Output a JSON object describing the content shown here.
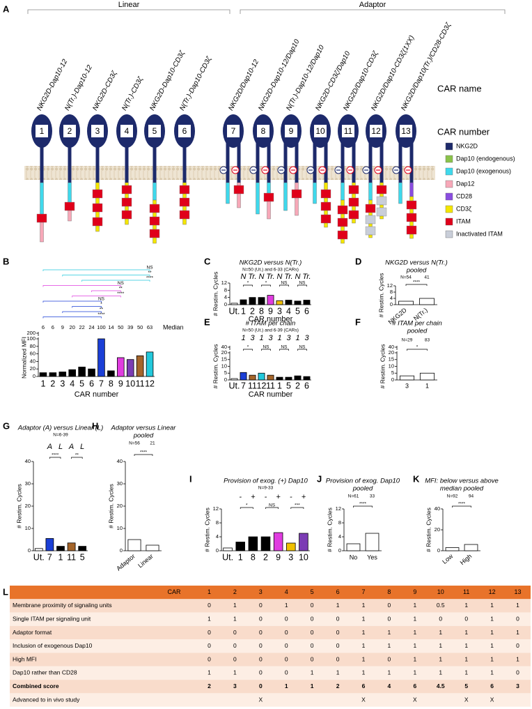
{
  "panel_labels": [
    "A",
    "B",
    "C",
    "D",
    "E",
    "F",
    "G",
    "H",
    "I",
    "J",
    "K",
    "L"
  ],
  "figure_a": {
    "groups": [
      {
        "label": "Linear"
      },
      {
        "label": "Adaptor"
      }
    ],
    "side_labels": [
      "CAR name",
      "CAR number"
    ],
    "cars": [
      {
        "name": "NKG2D-Dap10-12",
        "number": 1,
        "color": "#000000"
      },
      {
        "name": "N(Tr.)-Dap10-12",
        "number": 2,
        "color": "#000000"
      },
      {
        "name": "NKG2D-CD3ζ",
        "number": 3,
        "color": "#e9b800"
      },
      {
        "name": "N(Tr.)-CD3ζ",
        "number": 4,
        "color": "#000000"
      },
      {
        "name": "NKG2D-Dap10-CD3ζ",
        "number": 5,
        "color": "#000000"
      },
      {
        "name": "N(Tr.)-Dap10-CD3ζ",
        "number": 6,
        "color": "#000000"
      },
      {
        "name": "NKG2D/Dap10-12",
        "number": 7,
        "color": "#1b3fd6"
      },
      {
        "name": "NKG2D-Dap10-12/Dap10",
        "number": 8,
        "color": "#000000"
      },
      {
        "name": "N(Tr.)-Dap10-12/Dap10",
        "number": 9,
        "color": "#e03ce0"
      },
      {
        "name": "NKG2D-CD3ζ/Dap10",
        "number": 10,
        "color": "#7b3cb4"
      },
      {
        "name": "NKG2D/Dap10-CD3ζ",
        "number": 11,
        "color": "#a5652a"
      },
      {
        "name": "NKG2D/Dap10-CD3ζ(1XX)",
        "number": 12,
        "color": "#22c9dc"
      },
      {
        "name": "NKG2D/Dap10(Tr.)/CD28-CD3ζ",
        "number": 13,
        "color": "#000000"
      }
    ],
    "legend": [
      {
        "label": "NKG2D",
        "color": "#1d2a6b"
      },
      {
        "label": "Dap10 (endogenous)",
        "color": "#8bc34a"
      },
      {
        "label": "Dap10 (exogenous)",
        "color": "#3fd9ec"
      },
      {
        "label": "Dap12",
        "color": "#f7a8b8"
      },
      {
        "label": "CD28",
        "color": "#8a4de0"
      },
      {
        "label": "CD3ζ",
        "color": "#f4e600"
      },
      {
        "label": "ITAM",
        "color": "#e0001a"
      },
      {
        "label": "Inactivated ITAM",
        "color": "#c9ced9"
      }
    ]
  },
  "chart_data": [
    {
      "type": "bar",
      "ylabel": "Normalized MFI",
      "xlabel": "CAR number",
      "categories": [
        1,
        2,
        3,
        4,
        5,
        6,
        7,
        8,
        9,
        10,
        11,
        12
      ],
      "values": [
        10,
        10,
        12,
        18,
        25,
        20,
        100,
        15,
        50,
        45,
        55,
        65
      ],
      "colors": [
        "#000000",
        "#000000",
        "#000000",
        "#000000",
        "#000000",
        "#000000",
        "#1b3fd6",
        "#000000",
        "#e03ce0",
        "#7b3cb4",
        "#a5652a",
        "#22c9dc"
      ],
      "label_colors": [
        "#000000",
        "#000000",
        "#e9b800",
        "#000000",
        "#000000",
        "#000000",
        "#1b3fd6",
        "#000000",
        "#e03ce0",
        "#7b3cb4",
        "#a5652a",
        "#22c9dc"
      ],
      "ylim": [
        0,
        100
      ],
      "yticks": [
        0,
        20,
        40,
        60,
        80,
        100
      ],
      "ybreak": 200,
      "median_label": "Median",
      "medians": [
        6,
        6,
        9,
        20,
        22,
        24,
        100,
        14,
        50,
        39,
        50,
        63
      ],
      "significance": [
        {
          "label": "NS",
          "color": "#22c9dc"
        },
        {
          "label": "**",
          "color": "#22c9dc"
        },
        {
          "label": "****",
          "color": "#22c9dc"
        },
        {
          "label": "NS",
          "color": "#e03ce0"
        },
        {
          "label": "**",
          "color": "#e03ce0"
        },
        {
          "label": "****",
          "color": "#e03ce0"
        },
        {
          "label": "NS",
          "color": "#1b3fd6"
        },
        {
          "label": "*",
          "color": "#1b3fd6"
        },
        {
          "label": "**",
          "color": "#1b3fd6"
        },
        {
          "label": "****",
          "color": "#1b3fd6"
        }
      ]
    },
    {
      "type": "bar",
      "title": [
        "NKG2D versus N(Tr.)"
      ],
      "subtitle": "N=50 (Ut.) and 6-33 (CARs)",
      "group_labels": [
        "N",
        "Tr.",
        "N",
        "Tr.",
        "N",
        "Tr.",
        "N",
        "Tr."
      ],
      "ylabel": "# Restim. Cycles",
      "xlabel": "CAR number",
      "categories": [
        "Ut.",
        1,
        2,
        8,
        9,
        3,
        4,
        5,
        6
      ],
      "values": [
        0.8,
        2.7,
        4,
        4,
        5.2,
        2.2,
        2.5,
        2,
        2.5
      ],
      "colors": [
        "#ffffff",
        "#000000",
        "#000000",
        "#000000",
        "#e03ce0",
        "#f0c000",
        "#000000",
        "#000000",
        "#000000"
      ],
      "label_colors": [
        "#888888",
        "#000000",
        "#000000",
        "#000000",
        "#e03ce0",
        "#e9b800",
        "#000000",
        "#000000",
        "#000000"
      ],
      "ylim": [
        0,
        12
      ],
      "yticks": [
        0,
        4,
        8,
        12
      ],
      "significance": [
        {
          "label": "*"
        },
        {
          "label": "*"
        },
        {
          "label": "NS"
        },
        {
          "label": "NS"
        }
      ]
    },
    {
      "type": "bar",
      "title": [
        "NKG2D versus N(Tr.)",
        "pooled"
      ],
      "n_labels": [
        "N=54",
        41
      ],
      "ylabel": "# Restim. Cycles",
      "categories": [
        "NKG2D",
        "N(Tr.)"
      ],
      "values": [
        2.2,
        4
      ],
      "colors": [
        "#ffffff",
        "#ffffff"
      ],
      "label_colors": [
        "#000000",
        "#000000"
      ],
      "ylim": [
        0,
        12
      ],
      "yticks": [
        0,
        4,
        8,
        12
      ],
      "significance": [
        {
          "label": "****"
        }
      ]
    },
    {
      "type": "bar",
      "title": [
        "# ITAM per chain"
      ],
      "subtitle": "N=50 (Ut.) and 6-39 (CARs)",
      "group_labels": [
        1,
        3,
        1,
        3,
        1,
        3,
        1,
        3
      ],
      "ylabel": "# Restim. Cycles",
      "xlabel": "CAR number",
      "categories": [
        "Ut.",
        7,
        11,
        12,
        11,
        1,
        5,
        2,
        6
      ],
      "values": [
        1,
        5.5,
        3.5,
        5,
        3.5,
        2,
        2,
        3,
        2.5
      ],
      "colors": [
        "#ffffff",
        "#1b3fd6",
        "#a5652a",
        "#22c9dc",
        "#a5652a",
        "#000000",
        "#000000",
        "#000000",
        "#000000"
      ],
      "label_colors": [
        "#888888",
        "#1b3fd6",
        "#a5652a",
        "#22c9dc",
        "#a5652a",
        "#000000",
        "#000000",
        "#000000",
        "#000000"
      ],
      "ylim": [
        0,
        20
      ],
      "yticks": [
        0,
        5,
        10,
        15,
        20
      ],
      "ybreak": 40,
      "significance": [
        {
          "label": "*"
        },
        {
          "label": "NS"
        },
        {
          "label": "NS"
        },
        {
          "label": "NS"
        }
      ]
    },
    {
      "type": "bar",
      "title": [
        "# ITAM per chain",
        "pooled"
      ],
      "n_labels": [
        "N=29",
        83
      ],
      "ylabel": "# Restim. Cycles",
      "categories": [
        3,
        1
      ],
      "values": [
        3,
        5
      ],
      "colors": [
        "#ffffff",
        "#ffffff"
      ],
      "label_colors": [
        "#000000",
        "#000000"
      ],
      "ylim": [
        0,
        20
      ],
      "yticks": [
        0,
        5,
        10,
        15,
        20
      ],
      "ybreak": 40,
      "significance": [
        {
          "label": "*"
        }
      ]
    },
    {
      "type": "bar",
      "title": [
        "Adaptor (A) versus Linear (L)"
      ],
      "subtitle": "N=6-39",
      "group_labels": [
        "A",
        "L",
        "A",
        "L"
      ],
      "ylabel": "# Restim. Cycles",
      "categories": [
        "Ut.",
        7,
        1,
        11,
        5
      ],
      "values": [
        1,
        5.5,
        2,
        3.5,
        2
      ],
      "colors": [
        "#ffffff",
        "#1b3fd6",
        "#000000",
        "#a5652a",
        "#000000"
      ],
      "label_colors": [
        "#888888",
        "#1b3fd6",
        "#000000",
        "#a5652a",
        "#000000"
      ],
      "ylim": [
        0,
        40
      ],
      "yticks": [
        0,
        10,
        20,
        30,
        40
      ],
      "significance": [
        {
          "label": "****"
        },
        {
          "label": "**"
        }
      ]
    },
    {
      "type": "bar",
      "title": [
        "Adaptor versus Linear",
        "pooled"
      ],
      "n_labels": [
        "N=56",
        21
      ],
      "ylabel": "# Restim. Cycles",
      "categories": [
        "Adaptor",
        "Linear"
      ],
      "values": [
        5,
        2.5
      ],
      "colors": [
        "#ffffff",
        "#ffffff"
      ],
      "label_colors": [
        "#000000",
        "#000000"
      ],
      "ylim": [
        0,
        40
      ],
      "yticks": [
        0,
        10,
        20,
        30,
        40
      ],
      "significance": [
        {
          "label": "****"
        }
      ]
    },
    {
      "type": "bar",
      "title": [
        "Provision of exog. (+) Dap10"
      ],
      "subtitle": "N=9-33",
      "group_labels": [
        "-",
        "+",
        "-",
        "+",
        "-",
        "+"
      ],
      "ylabel": "# Restim. Cycles",
      "categories": [
        "Ut.",
        1,
        8,
        2,
        9,
        3,
        10
      ],
      "values": [
        0.8,
        2.5,
        4,
        4,
        5.2,
        2.2,
        5
      ],
      "colors": [
        "#ffffff",
        "#000000",
        "#000000",
        "#000000",
        "#e03ce0",
        "#f0c000",
        "#7b3cb4"
      ],
      "label_colors": [
        "#888888",
        "#000000",
        "#000000",
        "#000000",
        "#e03ce0",
        "#e9b800",
        "#7b3cb4"
      ],
      "ylim": [
        0,
        12
      ],
      "yticks": [
        0,
        4,
        8,
        12
      ],
      "significance": [
        {
          "label": "*"
        },
        {
          "label": "NS"
        },
        {
          "label": "***"
        }
      ]
    },
    {
      "type": "bar",
      "title": [
        "Provision of exog. Dap10",
        "pooled"
      ],
      "n_labels": [
        "N=61",
        33
      ],
      "ylabel": "# Restim. Cycles",
      "categories": [
        "No",
        "Yes"
      ],
      "values": [
        2,
        5
      ],
      "colors": [
        "#ffffff",
        "#ffffff"
      ],
      "label_colors": [
        "#000000",
        "#000000"
      ],
      "ylim": [
        0,
        12
      ],
      "yticks": [
        0,
        4,
        8,
        12
      ],
      "significance": [
        {
          "label": "****"
        }
      ]
    },
    {
      "type": "bar",
      "title": [
        "MFI: below versus above",
        "median pooled"
      ],
      "n_labels": [
        "N=92",
        94
      ],
      "ylabel": "# Restim. Cycles",
      "categories": [
        "Low",
        "High"
      ],
      "values": [
        3,
        6
      ],
      "colors": [
        "#ffffff",
        "#ffffff"
      ],
      "label_colors": [
        "#000000",
        "#000000"
      ],
      "ylim": [
        0,
        40
      ],
      "yticks": [
        0,
        20,
        40
      ],
      "significance": [
        {
          "label": "****"
        }
      ]
    }
  ],
  "table": {
    "header": [
      "CAR",
      1,
      2,
      3,
      4,
      5,
      6,
      7,
      8,
      9,
      10,
      11,
      12,
      13
    ],
    "rows": [
      [
        "Membrane proximity of signaling units",
        0,
        1,
        0,
        1,
        0,
        1,
        1,
        0,
        1,
        0.5,
        1,
        1,
        1
      ],
      [
        "Single ITAM per signaling unit",
        1,
        1,
        0,
        0,
        0,
        0,
        1,
        0,
        1,
        0,
        0,
        1,
        0
      ],
      [
        "Adaptor format",
        0,
        0,
        0,
        0,
        0,
        0,
        1,
        1,
        1,
        1,
        1,
        1,
        1
      ],
      [
        "Inclusion of exogenous Dap10",
        0,
        0,
        0,
        0,
        0,
        0,
        1,
        1,
        1,
        1,
        1,
        1,
        0
      ],
      [
        "High MFI",
        0,
        0,
        0,
        0,
        0,
        0,
        1,
        0,
        1,
        1,
        1,
        1,
        1
      ],
      [
        "Dap10 rather than CD28",
        1,
        1,
        0,
        0,
        1,
        1,
        1,
        1,
        1,
        1,
        1,
        1,
        0
      ],
      [
        "Combined score",
        2,
        3,
        0,
        1,
        1,
        2,
        6,
        4,
        6,
        4.5,
        5,
        6,
        3
      ],
      [
        "Advanced to in vivo study",
        null,
        null,
        "X",
        null,
        null,
        null,
        "X",
        null,
        "X",
        null,
        "X",
        "X",
        null
      ]
    ]
  }
}
